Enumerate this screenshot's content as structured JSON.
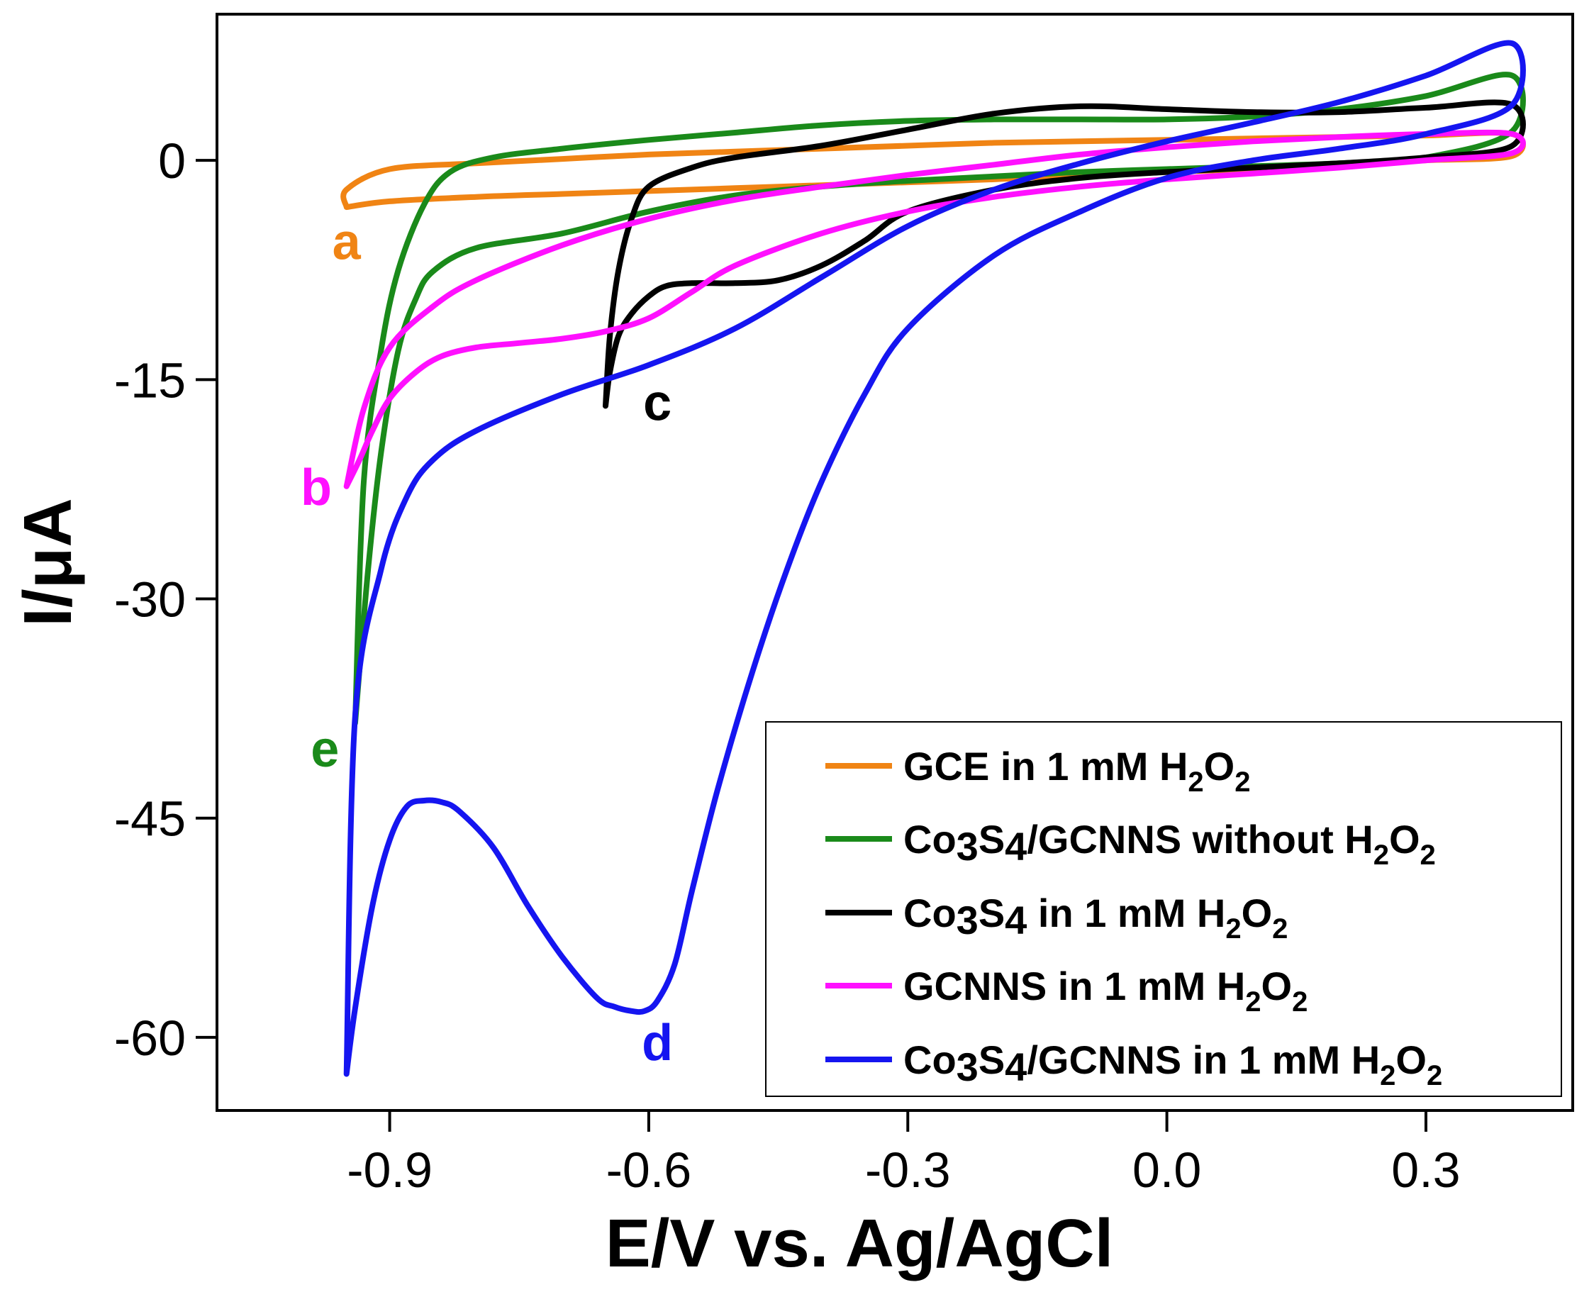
{
  "chart_data": {
    "type": "line",
    "title": "",
    "xlabel": "E/V vs. Ag/AgCl",
    "ylabel": "I/μA",
    "xlim": [
      -1.1,
      0.47
    ],
    "ylim": [
      -65,
      10
    ],
    "xticks": [
      -0.9,
      -0.6,
      -0.3,
      0.0,
      0.3
    ],
    "xtick_labels": [
      "-0.9",
      "-0.6",
      "-0.3",
      "0.0",
      "0.3"
    ],
    "yticks": [
      0,
      -15,
      -30,
      -45,
      -60
    ],
    "ytick_labels": [
      "0",
      "-15",
      "-30",
      "-45",
      "-60"
    ],
    "grid": false,
    "legend_position": "bottom-right",
    "series": [
      {
        "name": "GCE in 1 mM H2O2",
        "legend_parts": [
          "GCE in 1 mM H",
          "2",
          "O",
          "2"
        ],
        "color": "#f08414",
        "label": "a",
        "label_at": [
          -0.95,
          -5.5
        ],
        "x": [
          -0.95,
          -0.9,
          -0.8,
          -0.7,
          -0.6,
          -0.5,
          -0.4,
          -0.3,
          -0.2,
          -0.1,
          0.0,
          0.1,
          0.2,
          0.3,
          0.4,
          0.4,
          0.3,
          0.2,
          0.1,
          0.0,
          -0.1,
          -0.2,
          -0.3,
          -0.4,
          -0.5,
          -0.6,
          -0.7,
          -0.8,
          -0.9,
          -0.95,
          -0.95
        ],
        "y": [
          -3.2,
          -2.8,
          -2.5,
          -2.3,
          -2.1,
          -1.9,
          -1.7,
          -1.5,
          -1.3,
          -1.0,
          -0.8,
          -0.6,
          -0.3,
          0.0,
          0.3,
          1.8,
          1.7,
          1.6,
          1.5,
          1.4,
          1.3,
          1.2,
          1.0,
          0.8,
          0.6,
          0.4,
          0.1,
          -0.2,
          -0.6,
          -2.0,
          -3.2
        ]
      },
      {
        "name": "Co3S4/GCNNS without H2O2",
        "legend_parts": [
          "Co",
          "3",
          "S",
          "4",
          "/GCNNS without H",
          "2",
          "O",
          "2"
        ],
        "color": "#1a8a1a",
        "label": "e",
        "label_at": [
          -0.975,
          -40.2
        ],
        "x": [
          -0.94,
          -0.925,
          -0.91,
          -0.89,
          -0.87,
          -0.85,
          -0.8,
          -0.7,
          -0.6,
          -0.5,
          -0.4,
          -0.3,
          -0.2,
          -0.1,
          0.0,
          0.1,
          0.2,
          0.3,
          0.4,
          0.4,
          0.3,
          0.2,
          0.1,
          0.0,
          -0.1,
          -0.2,
          -0.3,
          -0.4,
          -0.5,
          -0.6,
          -0.7,
          -0.78,
          -0.83,
          -0.86,
          -0.89,
          -0.91,
          -0.93,
          -0.94
        ],
        "y": [
          -38.5,
          -28.0,
          -20.0,
          -13.0,
          -9.5,
          -7.6,
          -6.0,
          -5.0,
          -3.5,
          -2.4,
          -1.8,
          -1.4,
          -1.1,
          -0.8,
          -0.6,
          -0.4,
          -0.2,
          0.2,
          2.0,
          5.8,
          4.4,
          3.5,
          3.0,
          2.8,
          2.8,
          2.8,
          2.7,
          2.4,
          1.9,
          1.4,
          0.8,
          0.2,
          -0.8,
          -3.0,
          -7.5,
          -13.0,
          -22.0,
          -38.5
        ]
      },
      {
        "name": "Co3S4 in 1 mM H2O2",
        "legend_parts": [
          "Co",
          "3",
          "S",
          "4",
          " in 1 mM H",
          "2",
          "O",
          "2"
        ],
        "color": "#000000",
        "label": "c",
        "label_at": [
          -0.59,
          -16.5
        ],
        "x": [
          -0.65,
          -0.645,
          -0.635,
          -0.62,
          -0.6,
          -0.58,
          -0.55,
          -0.5,
          -0.45,
          -0.4,
          -0.35,
          -0.3,
          -0.2,
          -0.1,
          0.0,
          0.1,
          0.2,
          0.3,
          0.4,
          0.4,
          0.3,
          0.2,
          0.1,
          0.0,
          -0.1,
          -0.2,
          -0.3,
          -0.4,
          -0.5,
          -0.55,
          -0.6,
          -0.62,
          -0.635,
          -0.645,
          -0.65
        ],
        "y": [
          -16.8,
          -14.5,
          -12.0,
          -10.5,
          -9.3,
          -8.6,
          -8.4,
          -8.4,
          -8.2,
          -7.2,
          -5.5,
          -3.5,
          -2.0,
          -1.2,
          -0.8,
          -0.5,
          -0.2,
          0.2,
          1.0,
          3.8,
          3.6,
          3.3,
          3.3,
          3.5,
          3.7,
          3.2,
          2.1,
          1.0,
          0.2,
          -0.5,
          -1.8,
          -4.0,
          -7.5,
          -12.0,
          -16.8
        ]
      },
      {
        "name": "GCNNS in 1 mM H2O2",
        "legend_parts": [
          "GCNNS in 1 mM H",
          "2",
          "O",
          "2"
        ],
        "color": "#ff10ff",
        "label": "b",
        "label_at": [
          -0.985,
          -22.3
        ],
        "x": [
          -0.95,
          -0.935,
          -0.92,
          -0.9,
          -0.87,
          -0.84,
          -0.8,
          -0.75,
          -0.7,
          -0.65,
          -0.6,
          -0.55,
          -0.5,
          -0.4,
          -0.3,
          -0.2,
          -0.1,
          0.0,
          0.1,
          0.2,
          0.3,
          0.4,
          0.4,
          0.3,
          0.2,
          0.1,
          0.0,
          -0.1,
          -0.2,
          -0.3,
          -0.4,
          -0.5,
          -0.6,
          -0.7,
          -0.8,
          -0.85,
          -0.9,
          -0.93,
          -0.95
        ],
        "y": [
          -22.3,
          -20.5,
          -18.5,
          -16.3,
          -14.5,
          -13.4,
          -12.8,
          -12.5,
          -12.2,
          -11.7,
          -10.8,
          -9.0,
          -7.2,
          -5.0,
          -3.5,
          -2.5,
          -1.8,
          -1.3,
          -0.9,
          -0.5,
          0.0,
          0.5,
          1.8,
          1.8,
          1.6,
          1.3,
          0.9,
          0.4,
          -0.3,
          -1.0,
          -1.8,
          -2.7,
          -4.0,
          -5.8,
          -8.2,
          -10.0,
          -12.8,
          -17.0,
          -22.3
        ]
      },
      {
        "name": "Co3S4/GCNNS in 1 mM H2O2",
        "legend_parts": [
          "Co",
          "3",
          "S",
          "4",
          "/GCNNS in 1 mM H",
          "2",
          "O",
          "2"
        ],
        "color": "#1515f0",
        "label": "d",
        "label_at": [
          -0.59,
          -60.3
        ],
        "x": [
          -0.95,
          -0.94,
          -0.92,
          -0.9,
          -0.88,
          -0.86,
          -0.84,
          -0.82,
          -0.78,
          -0.74,
          -0.7,
          -0.66,
          -0.64,
          -0.62,
          -0.605,
          -0.59,
          -0.57,
          -0.55,
          -0.52,
          -0.48,
          -0.44,
          -0.4,
          -0.35,
          -0.3,
          -0.2,
          -0.1,
          0.0,
          0.1,
          0.2,
          0.3,
          0.4,
          0.4,
          0.3,
          0.2,
          0.1,
          0.0,
          -0.1,
          -0.2,
          -0.3,
          -0.4,
          -0.5,
          -0.6,
          -0.7,
          -0.8,
          -0.85,
          -0.88,
          -0.91,
          -0.94,
          -0.95
        ],
        "y": [
          -62.5,
          -58.0,
          -51.0,
          -46.5,
          -44.2,
          -43.8,
          -43.9,
          -44.5,
          -47.0,
          -51.0,
          -54.5,
          -57.3,
          -57.9,
          -58.2,
          -58.2,
          -57.5,
          -55.0,
          -50.0,
          -43.0,
          -35.0,
          -28.0,
          -22.0,
          -16.0,
          -11.5,
          -6.5,
          -3.5,
          -1.2,
          0.0,
          0.8,
          1.8,
          3.8,
          8.0,
          5.8,
          4.0,
          2.6,
          1.3,
          -0.2,
          -2.0,
          -4.5,
          -8.0,
          -11.5,
          -14.0,
          -16.0,
          -18.5,
          -20.5,
          -23.0,
          -28.0,
          -38.0,
          -62.5
        ]
      }
    ]
  }
}
